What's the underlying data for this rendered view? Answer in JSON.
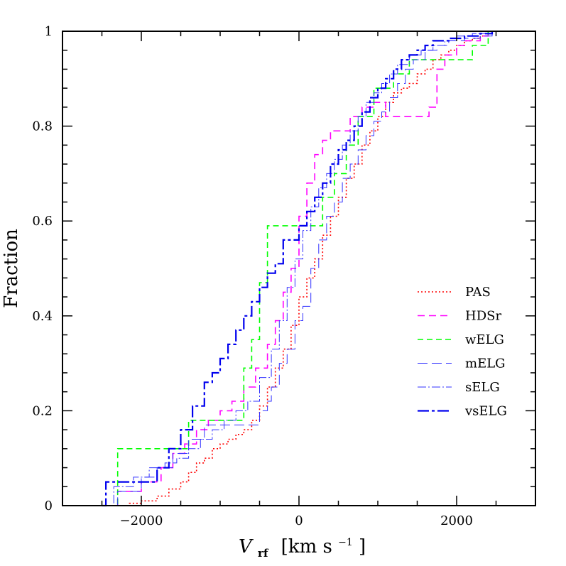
{
  "chart_data": {
    "type": "line",
    "xlabel_main": "V",
    "xlabel_sub": "rf",
    "xlabel_units": "[km s",
    "xlabel_exp": "−1",
    "xlabel_close": "]",
    "ylabel": "Fraction",
    "xlim": [
      -3000,
      3000
    ],
    "ylim": [
      0,
      1
    ],
    "xticks": [
      -2000,
      0,
      2000
    ],
    "xtick_labels": [
      "−2000",
      "0",
      "2000"
    ],
    "yticks": [
      0,
      0.2,
      0.4,
      0.6,
      0.8,
      1
    ],
    "ytick_labels": [
      "0",
      "0.2",
      "0.4",
      "0.6",
      "0.8",
      "1"
    ],
    "legend_position": "right",
    "series": [
      {
        "name": "PAS",
        "color": "#ff0000",
        "dash": "2,3",
        "width": 1.6,
        "x": [
          -2350,
          -2150,
          -2000,
          -1800,
          -1650,
          -1500,
          -1400,
          -1300,
          -1200,
          -1100,
          -1000,
          -900,
          -800,
          -700,
          -600,
          -500,
          -400,
          -300,
          -200,
          -100,
          0,
          100,
          200,
          300,
          400,
          500,
          600,
          700,
          800,
          900,
          1000,
          1100,
          1200,
          1300,
          1400,
          1500,
          1600,
          1700,
          1800,
          1900,
          2000,
          2100,
          2200,
          2300,
          2400
        ],
        "y": [
          0.0,
          0.005,
          0.01,
          0.02,
          0.035,
          0.05,
          0.07,
          0.09,
          0.1,
          0.12,
          0.13,
          0.14,
          0.15,
          0.16,
          0.18,
          0.21,
          0.25,
          0.29,
          0.33,
          0.38,
          0.44,
          0.48,
          0.52,
          0.57,
          0.61,
          0.65,
          0.69,
          0.72,
          0.76,
          0.79,
          0.82,
          0.85,
          0.87,
          0.88,
          0.89,
          0.91,
          0.92,
          0.94,
          0.95,
          0.96,
          0.97,
          0.98,
          0.985,
          0.99,
          1.0
        ]
      },
      {
        "name": "HDSr",
        "color": "#ff00ff",
        "dash": "10,6",
        "width": 1.6,
        "x": [
          -2450,
          -2300,
          -2000,
          -1750,
          -1600,
          -1450,
          -1300,
          -1150,
          -1000,
          -850,
          -700,
          -550,
          -400,
          -300,
          -200,
          -100,
          0,
          100,
          200,
          300,
          400,
          500,
          650,
          800,
          950,
          1100,
          1600,
          1650,
          1750,
          1850,
          2000,
          2100,
          2300,
          2400
        ],
        "y": [
          0.0,
          0.03,
          0.05,
          0.08,
          0.11,
          0.13,
          0.16,
          0.18,
          0.2,
          0.22,
          0.25,
          0.29,
          0.34,
          0.39,
          0.45,
          0.5,
          0.61,
          0.68,
          0.74,
          0.77,
          0.79,
          0.79,
          0.82,
          0.84,
          0.85,
          0.82,
          0.82,
          0.84,
          0.92,
          0.95,
          0.97,
          0.98,
          0.99,
          1.0
        ]
      },
      {
        "name": "wELG",
        "color": "#00ff00",
        "dash": "8,5",
        "width": 1.6,
        "x": [
          -2400,
          -2300,
          -1550,
          -1400,
          -800,
          -700,
          -600,
          -500,
          -400,
          -250,
          0,
          150,
          300,
          450,
          600,
          750,
          850,
          950,
          1050,
          1200,
          1400,
          1600,
          1800,
          2050,
          2200,
          2400
        ],
        "y": [
          0.0,
          0.12,
          0.12,
          0.18,
          0.18,
          0.29,
          0.35,
          0.47,
          0.59,
          0.59,
          0.59,
          0.59,
          0.65,
          0.7,
          0.76,
          0.82,
          0.82,
          0.88,
          0.88,
          0.91,
          0.94,
          0.94,
          0.94,
          0.94,
          0.97,
          1.0
        ]
      },
      {
        "name": "mELG",
        "color": "#3333ff",
        "dash": "14,6",
        "width": 1.0,
        "x": [
          -2500,
          -2300,
          -2000,
          -1800,
          -1600,
          -1400,
          -1200,
          -1000,
          -900,
          -700,
          -500,
          -400,
          -350,
          -250,
          -150,
          -50,
          50,
          150,
          250,
          350,
          450,
          550,
          650,
          750,
          850,
          950,
          1050,
          1150,
          1250,
          1350,
          1450,
          1600,
          1750,
          1900,
          2100,
          2300,
          2450
        ],
        "y": [
          0.0,
          0.03,
          0.06,
          0.08,
          0.11,
          0.14,
          0.17,
          0.17,
          0.17,
          0.17,
          0.2,
          0.22,
          0.25,
          0.3,
          0.33,
          0.39,
          0.42,
          0.5,
          0.56,
          0.61,
          0.64,
          0.69,
          0.72,
          0.75,
          0.78,
          0.81,
          0.83,
          0.86,
          0.89,
          0.92,
          0.94,
          0.96,
          0.97,
          0.98,
          0.985,
          0.99,
          1.0
        ]
      },
      {
        "name": "sELG",
        "color": "#3333ff",
        "dash": "12,3,2,3",
        "width": 1.0,
        "x": [
          -2500,
          -2350,
          -2100,
          -1900,
          -1700,
          -1550,
          -1400,
          -1250,
          -1100,
          -950,
          -800,
          -650,
          -500,
          -350,
          -250,
          -150,
          -50,
          50,
          150,
          250,
          350,
          450,
          550,
          650,
          750,
          850,
          950,
          1050,
          1150,
          1250,
          1400,
          1550,
          1700,
          1850,
          2000,
          2200,
          2450
        ],
        "y": [
          0.0,
          0.04,
          0.06,
          0.08,
          0.09,
          0.1,
          0.12,
          0.14,
          0.16,
          0.18,
          0.2,
          0.22,
          0.27,
          0.33,
          0.39,
          0.46,
          0.52,
          0.58,
          0.63,
          0.67,
          0.7,
          0.73,
          0.76,
          0.79,
          0.82,
          0.85,
          0.87,
          0.89,
          0.91,
          0.93,
          0.95,
          0.96,
          0.97,
          0.98,
          0.99,
          0.995,
          1.0
        ]
      },
      {
        "name": "vsELG",
        "color": "#0000ee",
        "dash": "16,4,4,4",
        "width": 2.2,
        "x": [
          -2500,
          -2450,
          -2000,
          -1800,
          -1650,
          -1500,
          -1350,
          -1200,
          -1100,
          -1000,
          -900,
          -800,
          -700,
          -600,
          -500,
          -400,
          -300,
          -200,
          -100,
          0,
          100,
          200,
          300,
          400,
          500,
          600,
          700,
          800,
          900,
          1000,
          1100,
          1200,
          1300,
          1400,
          1500,
          1600,
          1700,
          1900,
          2100,
          2300,
          2450
        ],
        "y": [
          0.0,
          0.05,
          0.05,
          0.08,
          0.12,
          0.16,
          0.21,
          0.26,
          0.28,
          0.31,
          0.34,
          0.37,
          0.4,
          0.43,
          0.46,
          0.49,
          0.51,
          0.56,
          0.56,
          0.59,
          0.62,
          0.65,
          0.68,
          0.72,
          0.75,
          0.77,
          0.8,
          0.83,
          0.86,
          0.88,
          0.9,
          0.92,
          0.94,
          0.95,
          0.96,
          0.97,
          0.98,
          0.985,
          0.99,
          0.995,
          1.0
        ]
      }
    ]
  }
}
